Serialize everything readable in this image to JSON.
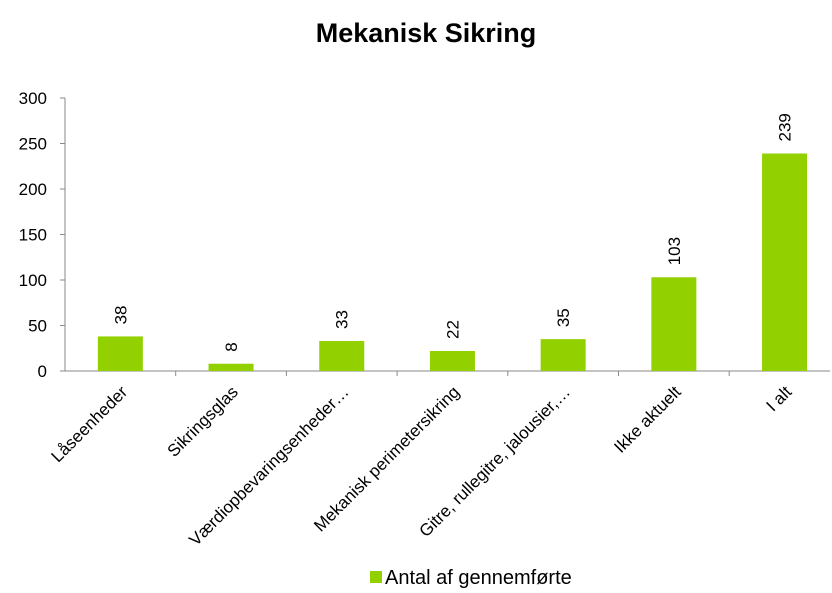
{
  "chart_data": {
    "type": "bar",
    "title": "Mekanisk Sikring",
    "categories": [
      "Låseenheder",
      "Sikringsglas",
      "Værdiopbevaringsenheder…",
      "Mekanisk perimetersikring",
      "Gitre, rullegitre, jalousier,…",
      "Ikke aktuelt",
      "I alt"
    ],
    "series": [
      {
        "name": "Antal af gennemførte",
        "color": "#92d000",
        "values": [
          38,
          8,
          33,
          22,
          35,
          103,
          239
        ]
      }
    ],
    "ylim": [
      0,
      300
    ],
    "yticks": [
      0,
      50,
      100,
      150,
      200,
      250,
      300
    ],
    "grid": false,
    "legend": "bottom"
  }
}
